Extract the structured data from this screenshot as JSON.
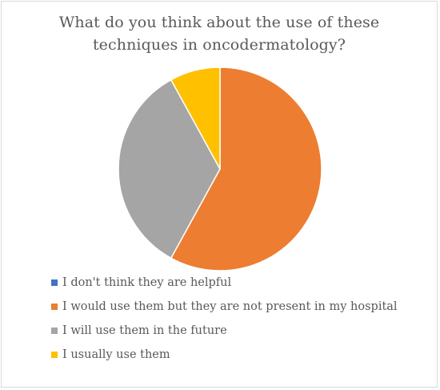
{
  "chart_data": {
    "type": "pie",
    "title_lines": [
      "What do you think about the use of these",
      "techniques in oncodermatology?"
    ],
    "categories": [
      "I don't think they are helpful",
      "I would use them but they are not present in my hospital",
      "I will use them in the future",
      "I usually use them"
    ],
    "values": [
      0,
      58,
      34,
      8
    ],
    "colors": [
      "#4472c4",
      "#ed7d31",
      "#a5a5a5",
      "#ffc000"
    ],
    "legend_position": "bottom"
  }
}
